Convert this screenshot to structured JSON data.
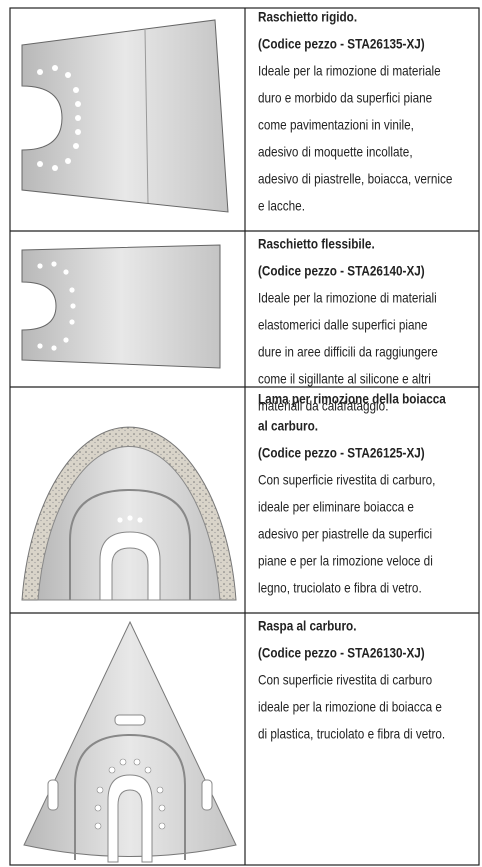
{
  "table": {
    "rows": [
      {
        "title_lines": [
          "Raschietto rigido."
        ],
        "code": "(Codice pezzo - STA26135-XJ)",
        "lines": [
          "Ideale per la rimozione di materiale",
          "duro e morbido da superfici piane",
          "come pavimentazioni in vinile,",
          "adesivo di moquette incollate,",
          "adesivo di piastrelle, boiacca, vernice",
          "e lacche."
        ]
      },
      {
        "title_lines": [
          "Raschietto flessibile."
        ],
        "code": "(Codice pezzo - STA26140-XJ)",
        "lines": [
          "Ideale per la rimozione di materiali",
          "elastomerici dalle superfici piane",
          "dure in aree difficili da raggiungere",
          "come il sigillante al silicone e altri",
          "materiali da calafataggio."
        ]
      },
      {
        "title_lines": [
          "Lama per rimozione della boiacca",
          "al carburo."
        ],
        "code": "(Codice pezzo - STA26125-XJ)",
        "lines": [
          "Con superficie rivestita di carburo,",
          "ideale per eliminare boiacca e",
          "adesivo per piastrelle da superfici",
          "piane e per la rimozione veloce di",
          "legno, truciolato e fibra di vetro."
        ]
      },
      {
        "title_lines": [
          "Raspa al carburo."
        ],
        "code": "(Codice pezzo - STA26130-XJ)",
        "lines": [
          "Con superficie rivestita di carburo",
          "ideale per la rimozione di boiacca e",
          "di plastica, truciolato e fibra di vetro."
        ]
      }
    ]
  }
}
